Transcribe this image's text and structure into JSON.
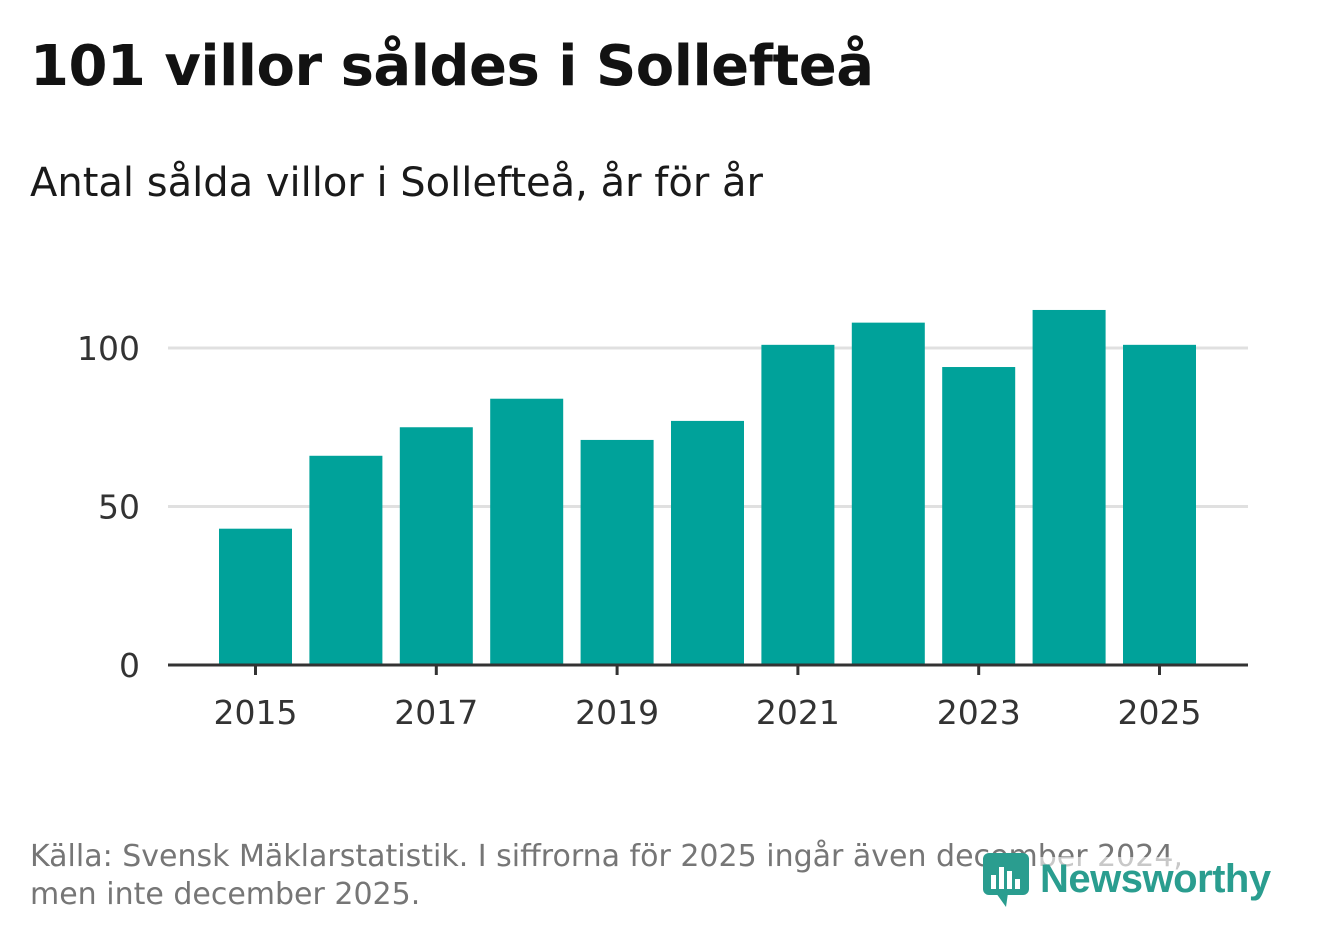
{
  "header": {
    "title": "101 villor såldes i Sollefteå",
    "subtitle": "Antal sålda villor i Sollefteå, år för år"
  },
  "chart_data": {
    "type": "bar",
    "title": "101 villor såldes i Sollefteå",
    "subtitle": "Antal sålda villor i Sollefteå, år för år",
    "categories": [
      "2015",
      "2016",
      "2017",
      "2018",
      "2019",
      "2020",
      "2021",
      "2022",
      "2023",
      "2024",
      "2025"
    ],
    "values": [
      43,
      66,
      75,
      84,
      71,
      77,
      101,
      108,
      94,
      112,
      101
    ],
    "xlabel": "",
    "ylabel": "",
    "ylim": [
      0,
      120
    ],
    "yticks": [
      0,
      50,
      100
    ],
    "xtick_labels": [
      "2015",
      "2017",
      "2019",
      "2021",
      "2023",
      "2025"
    ],
    "grid": true,
    "legend": "none"
  },
  "colors": {
    "bar": "#00a29a",
    "grid": "#e0e0e0",
    "axis": "#333333",
    "brand": "#2a9d8f"
  },
  "footer": {
    "source_line1": "Källa: Svensk Mäklarstatistik. I siffrorna för 2025 ingår även december 2024,",
    "source_line2": "men inte december 2025."
  },
  "logo": {
    "text": "Newsworthy",
    "icon": "bar-chart-speech-bubble-icon"
  }
}
